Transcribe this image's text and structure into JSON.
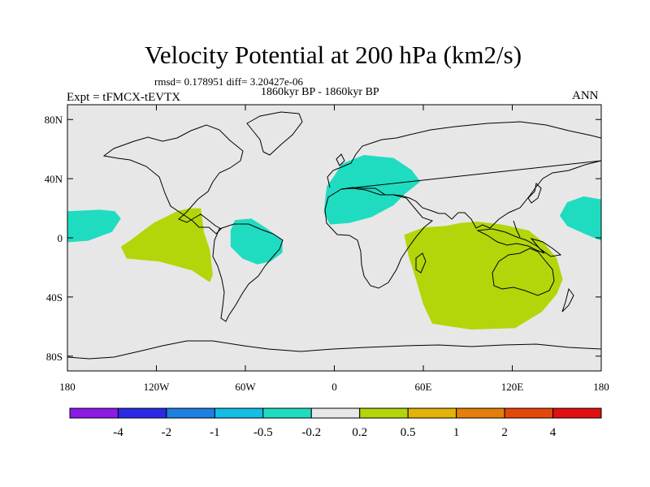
{
  "title": "Velocity Potential at 200 hPa (km2/s)",
  "stats": "rmsd= 0.178951 diff= 3.20427e-06",
  "left_label": "Expt = tFMCX-tEVTX",
  "center_label": "1860kyr BP - 1860kyr BP",
  "right_label": "ANN",
  "map": {
    "background_color": "#e7e7e7",
    "lon_range": [
      -180,
      180
    ],
    "lat_range": [
      -90,
      90
    ],
    "x_ticks": [
      {
        "lon": -180,
        "label": "180"
      },
      {
        "lon": -120,
        "label": "120W"
      },
      {
        "lon": -60,
        "label": "60W"
      },
      {
        "lon": 0,
        "label": "0"
      },
      {
        "lon": 60,
        "label": "60E"
      },
      {
        "lon": 120,
        "label": "120E"
      },
      {
        "lon": 180,
        "label": "180"
      }
    ],
    "y_ticks": [
      {
        "lat": 80,
        "label": "80N"
      },
      {
        "lat": 40,
        "label": "40N"
      },
      {
        "lat": 0,
        "label": "0"
      },
      {
        "lat": -40,
        "label": "40S"
      },
      {
        "lat": -80,
        "label": "80S"
      }
    ],
    "regions": [
      {
        "name": "negative-region-mediterranean",
        "color": "#1fdcc1",
        "points": [
          [
            -5,
            35
          ],
          [
            0,
            42
          ],
          [
            5,
            50
          ],
          [
            20,
            56
          ],
          [
            40,
            54
          ],
          [
            52,
            46
          ],
          [
            58,
            38
          ],
          [
            48,
            30
          ],
          [
            40,
            22
          ],
          [
            25,
            14
          ],
          [
            10,
            10
          ],
          [
            -3,
            9
          ],
          [
            -7,
            17
          ],
          [
            -6,
            28
          ]
        ]
      },
      {
        "name": "negative-region-east-pacific",
        "color": "#1fdcc1",
        "points": [
          [
            -180,
            18
          ],
          [
            -158,
            19
          ],
          [
            -148,
            18
          ],
          [
            -144,
            13
          ],
          [
            -150,
            4
          ],
          [
            -166,
            -2
          ],
          [
            -180,
            -3
          ]
        ]
      },
      {
        "name": "negative-region-west-pacific",
        "color": "#1fdcc1",
        "points": [
          [
            180,
            -2
          ],
          [
            168,
            3
          ],
          [
            157,
            8
          ],
          [
            152,
            15
          ],
          [
            157,
            24
          ],
          [
            168,
            28
          ],
          [
            180,
            26
          ]
        ]
      },
      {
        "name": "negative-region-south-america",
        "color": "#1fdcc1",
        "points": [
          [
            -67,
            12
          ],
          [
            -56,
            13
          ],
          [
            -45,
            6
          ],
          [
            -35,
            -2
          ],
          [
            -35,
            -10
          ],
          [
            -43,
            -16
          ],
          [
            -52,
            -18
          ],
          [
            -62,
            -14
          ],
          [
            -70,
            -6
          ],
          [
            -70,
            5
          ]
        ]
      },
      {
        "name": "positive-region-east-pacific",
        "color": "#b2d60a",
        "points": [
          [
            -106,
            18
          ],
          [
            -98,
            20
          ],
          [
            -90,
            20
          ],
          [
            -88,
            4
          ],
          [
            -84,
            -8
          ],
          [
            -82,
            -25
          ],
          [
            -84,
            -30
          ],
          [
            -96,
            -22
          ],
          [
            -118,
            -16
          ],
          [
            -140,
            -14
          ],
          [
            -144,
            -6
          ],
          [
            -138,
            -2
          ],
          [
            -122,
            10
          ]
        ]
      },
      {
        "name": "positive-region-indian-ocean",
        "color": "#b2d60a",
        "points": [
          [
            47,
            2
          ],
          [
            60,
            7
          ],
          [
            75,
            8
          ],
          [
            85,
            10
          ],
          [
            96,
            11
          ],
          [
            113,
            9
          ],
          [
            131,
            5
          ],
          [
            141,
            -3
          ],
          [
            150,
            -14
          ],
          [
            154,
            -28
          ],
          [
            150,
            -38
          ],
          [
            140,
            -50
          ],
          [
            122,
            -61
          ],
          [
            92,
            -62
          ],
          [
            66,
            -58
          ],
          [
            60,
            -45
          ],
          [
            55,
            -28
          ],
          [
            50,
            -12
          ],
          [
            48,
            -2
          ]
        ]
      }
    ]
  },
  "colorbar": {
    "colors": [
      "#8e1ae6",
      "#2a2ae6",
      "#1d7fe0",
      "#12bde6",
      "#1fdcc1",
      "#e7e7e7",
      "#b2d60a",
      "#e3b309",
      "#e57e0a",
      "#e34808",
      "#e01010"
    ],
    "labels": [
      "-4",
      "-2",
      "-1",
      "-0.5",
      "-0.2",
      "0.2",
      "0.5",
      "1",
      "2",
      "4"
    ]
  }
}
